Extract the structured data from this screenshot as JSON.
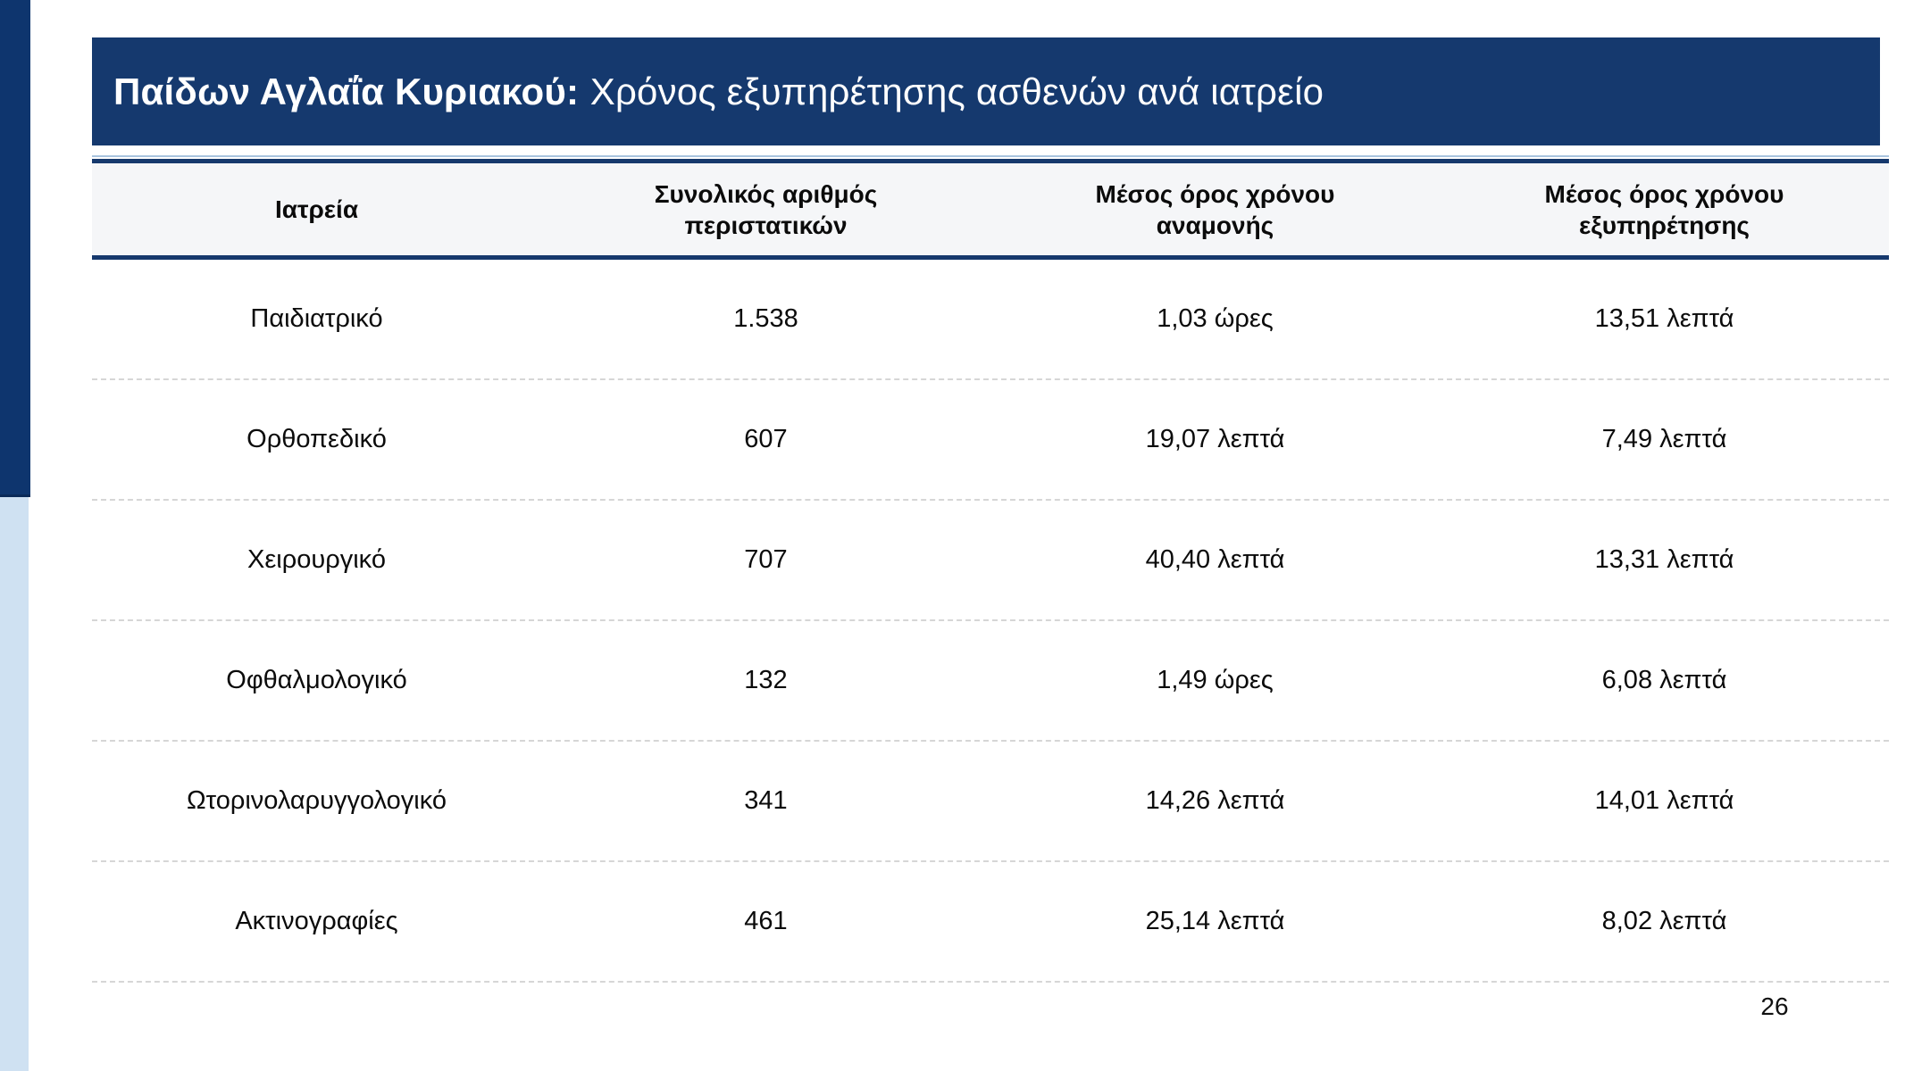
{
  "title": {
    "bold": "Παίδων Αγλαΐα Κυριακού:",
    "regular": "Χρόνος εξυπηρέτησης ασθενών ανά ιατρείο"
  },
  "table": {
    "columns": [
      "Ιατρεία",
      "Συνολικός αριθμός περιστατικών",
      "Μέσος όρος χρόνου αναμονής",
      "Μέσος όρος χρόνου εξυπηρέτησης"
    ],
    "rows": [
      [
        "Παιδιατρικό",
        "1.538",
        "1,03 ώρες",
        "13,51 λεπτά"
      ],
      [
        "Ορθοπεδικό",
        "607",
        "19,07 λεπτά",
        "7,49 λεπτά"
      ],
      [
        "Χειρουργικό",
        "707",
        "40,40 λεπτά",
        "13,31 λεπτά"
      ],
      [
        "Οφθαλμολογικό",
        "132",
        "1,49 ώρες",
        "6,08 λεπτά"
      ],
      [
        "Ωτορινολαρυγγολογικό",
        "341",
        "14,26 λεπτά",
        "14,01 λεπτά"
      ],
      [
        "Ακτινογραφίες",
        "461",
        "25,14 λεπτά",
        "8,02 λεπτά"
      ]
    ]
  },
  "page": {
    "number": "26"
  },
  "colors": {
    "navy": "#15396E",
    "accent_dark": "#0E356E",
    "accent_light": "#CFE1F2",
    "rule_light": "#A9C4DF",
    "row_dash": "#D6D6D6"
  }
}
